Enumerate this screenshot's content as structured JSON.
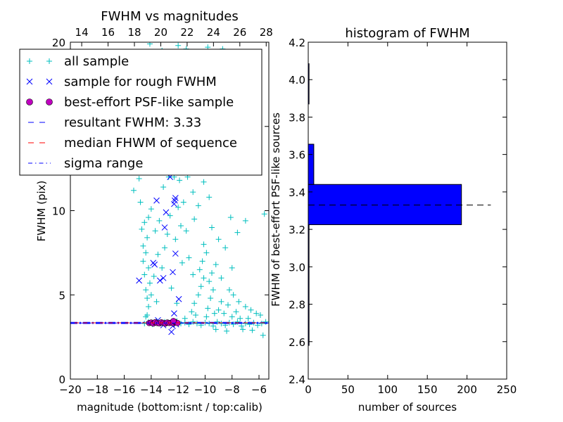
{
  "chart_data": [
    {
      "type": "scatter",
      "title": "FWHM vs magnitudes",
      "xlabel": "magnitude (bottom:isnt / top:calib)",
      "ylabel": "FWHM (pix)",
      "xlim": [
        -20,
        -5.27
      ],
      "ylim": [
        0,
        20
      ],
      "xticks": [
        "−20",
        "−18",
        "−16",
        "−14",
        "−12",
        "−10",
        "−8",
        "−6"
      ],
      "xtick_values": [
        -20,
        -18,
        -16,
        -14,
        -12,
        -10,
        -8,
        -6
      ],
      "yticks": [
        "0",
        "5",
        "10",
        "15",
        "20"
      ],
      "ytick_values": [
        0,
        5,
        10,
        15,
        20
      ],
      "top_axis": {
        "xlim": [
          13.14,
          28.2
        ],
        "ticks": [
          "14",
          "16",
          "18",
          "20",
          "22",
          "24",
          "26",
          "28"
        ],
        "tick_values": [
          14,
          16,
          18,
          20,
          22,
          24,
          26,
          28
        ]
      },
      "legend_placement": "upper-left",
      "legend": [
        {
          "label": "all sample",
          "marker": "+",
          "color": "#00bfbf"
        },
        {
          "label": "sample for rough FWHM",
          "marker": "x",
          "color": "#0000ff"
        },
        {
          "label": "best-effort PSF-like sample",
          "marker": "o",
          "color": "#bf00bf"
        },
        {
          "label": "resultant FWHM: 3.33",
          "marker": "--",
          "color": "#0000ff"
        },
        {
          "label": "median FHWM of sequence",
          "marker": "--",
          "color": "#ff0000"
        },
        {
          "label": "sigma range",
          "marker": "-.",
          "color": "#0000ff"
        }
      ],
      "lines": {
        "resultant": 3.33,
        "median": 3.34,
        "sigma_low": 3.3,
        "sigma_high": 3.37
      },
      "series": [
        {
          "name": "all sample",
          "points": [
            [
              -14.5,
              3.3
            ],
            [
              -14.2,
              3.4
            ],
            [
              -13.9,
              3.25
            ],
            [
              -13.6,
              3.45
            ],
            [
              -13.3,
              3.3
            ],
            [
              -13,
              3.4
            ],
            [
              -12.7,
              3.35
            ],
            [
              -12.4,
              3.3
            ],
            [
              -12.1,
              3.45
            ],
            [
              -11.8,
              3.3
            ],
            [
              -11.5,
              3.35
            ],
            [
              -11.2,
              3.25
            ],
            [
              -10.9,
              3.4
            ],
            [
              -10.6,
              3.3
            ],
            [
              -10.3,
              3.2
            ],
            [
              -10,
              3.35
            ],
            [
              -9.7,
              3.3
            ],
            [
              -9.4,
              3.15
            ],
            [
              -9.1,
              3.4
            ],
            [
              -8.8,
              3.3
            ],
            [
              -8.5,
              3.2
            ],
            [
              -8.2,
              3.35
            ],
            [
              -7.9,
              3.25
            ],
            [
              -7.6,
              3.4
            ],
            [
              -7.3,
              3.15
            ],
            [
              -7,
              3.3
            ],
            [
              -6.7,
              3.25
            ],
            [
              -6.4,
              3.35
            ],
            [
              -6.1,
              3.2
            ],
            [
              -5.8,
              3.3
            ],
            [
              -5.5,
              3.4
            ],
            [
              -6.5,
              2.9
            ],
            [
              -7.2,
              2.95
            ],
            [
              -8.4,
              2.85
            ],
            [
              -9.2,
              2.95
            ],
            [
              -5.7,
              2.6
            ],
            [
              -6.8,
              3.6
            ],
            [
              -5.9,
              3.8
            ],
            [
              -14.3,
              3.8
            ],
            [
              -14.2,
              4.3
            ],
            [
              -14.3,
              4.8
            ],
            [
              -14.4,
              5.3
            ],
            [
              -14.1,
              5.7
            ],
            [
              -14.5,
              6.2
            ],
            [
              -14.2,
              6.6
            ],
            [
              -14.6,
              7.0
            ],
            [
              -14.4,
              7.5
            ],
            [
              -14.6,
              7.9
            ],
            [
              -14.3,
              8.4
            ],
            [
              -14.7,
              8.9
            ],
            [
              -14.5,
              9.3
            ],
            [
              -14.2,
              9.6
            ],
            [
              -14.8,
              10.5
            ],
            [
              -14.0,
              10.1
            ],
            [
              -13.7,
              8.8
            ],
            [
              -13.5,
              7.4
            ],
            [
              -13.8,
              6.1
            ],
            [
              -13.2,
              6.6
            ],
            [
              -13.0,
              7.8
            ],
            [
              -12.8,
              8.6
            ],
            [
              -13.4,
              9.4
            ],
            [
              -12.6,
              9.7
            ],
            [
              -13.1,
              11.4
            ],
            [
              -12.7,
              12.0
            ],
            [
              -14.9,
              11.9
            ],
            [
              -15.3,
              11.2
            ],
            [
              -14.0,
              5.0
            ],
            [
              -13.6,
              4.6
            ],
            [
              -14.4,
              3.7
            ],
            [
              -11.5,
              3.6
            ],
            [
              -11.0,
              4.0
            ],
            [
              -10.8,
              4.5
            ],
            [
              -10.5,
              5.0
            ],
            [
              -10.3,
              5.5
            ],
            [
              -10.1,
              6.0
            ],
            [
              -10.4,
              6.5
            ],
            [
              -10.2,
              7.0
            ],
            [
              -9.9,
              7.5
            ],
            [
              -10.1,
              8.0
            ],
            [
              -9.8,
              4.2
            ],
            [
              -9.6,
              4.8
            ],
            [
              -9.4,
              5.3
            ],
            [
              -9.7,
              5.8
            ],
            [
              -9.5,
              6.3
            ],
            [
              -9.2,
              6.8
            ],
            [
              -9.0,
              4.1
            ],
            [
              -8.8,
              4.6
            ],
            [
              -8.6,
              3.9
            ],
            [
              -8.3,
              4.4
            ],
            [
              -8.0,
              3.7
            ],
            [
              -7.7,
              4.0
            ],
            [
              -7.4,
              3.6
            ],
            [
              -10.7,
              3.8
            ],
            [
              -9.9,
              3.7
            ],
            [
              -9.3,
              3.9
            ],
            [
              -10.9,
              6.2
            ],
            [
              -11.2,
              7.2
            ],
            [
              -11.4,
              8.8
            ],
            [
              -10.8,
              9.5
            ],
            [
              -10.5,
              10.3
            ],
            [
              -10.9,
              11.1
            ],
            [
              -11.6,
              10.5
            ],
            [
              -11.8,
              9.1
            ],
            [
              -11.3,
              12.0
            ],
            [
              -9.5,
              9.0
            ],
            [
              -9.0,
              8.3
            ],
            [
              -8.5,
              7.8
            ],
            [
              -8.8,
              6.0
            ],
            [
              -8.2,
              5.3
            ],
            [
              -7.9,
              5.0
            ],
            [
              -7.5,
              4.6
            ],
            [
              -7.0,
              4.3
            ],
            [
              -6.6,
              4.1
            ],
            [
              -6.2,
              3.9
            ],
            [
              -8.1,
              9.6
            ],
            [
              -7.0,
              9.4
            ],
            [
              -7.6,
              8.7
            ],
            [
              -5.6,
              9.8
            ],
            [
              -8.0,
              6.6
            ],
            [
              -9.7,
              10.8
            ],
            [
              -10.1,
              11.7
            ],
            [
              -11.9,
              11.8
            ],
            [
              -12.3,
              12.0
            ],
            [
              -12.0,
              10.2
            ],
            [
              -12.2,
              8.3
            ],
            [
              -11.7,
              6.9
            ],
            [
              -12.5,
              5.4
            ],
            [
              -12.1,
              4.5
            ],
            [
              -14.1,
              19.9
            ],
            [
              -12.0,
              19.8
            ],
            [
              -11.4,
              19.6
            ],
            [
              -9.8,
              19.7
            ],
            [
              -13.2,
              19.5
            ],
            [
              -8.7,
              19.6
            ]
          ]
        },
        {
          "name": "sample for rough FWHM",
          "points": [
            [
              -14.9,
              5.85
            ],
            [
              -13.85,
              6.9
            ],
            [
              -13.75,
              6.8
            ],
            [
              -13.35,
              5.85
            ],
            [
              -13.1,
              6.0
            ],
            [
              -13.0,
              9.0
            ],
            [
              -12.9,
              9.9
            ],
            [
              -13.6,
              10.6
            ],
            [
              -12.3,
              10.4
            ],
            [
              -12.25,
              10.6
            ],
            [
              -12.2,
              10.75
            ],
            [
              -12.4,
              6.35
            ],
            [
              -12.2,
              7.45
            ],
            [
              -11.95,
              4.75
            ],
            [
              -12.3,
              3.9
            ],
            [
              -12.5,
              2.8
            ],
            [
              -12.4,
              3.15
            ],
            [
              -12.15,
              3.25
            ],
            [
              -12.6,
              12.0
            ],
            [
              -13.5,
              3.5
            ],
            [
              -13.1,
              3.2
            ]
          ]
        },
        {
          "name": "best-effort PSF-like sample",
          "points": [
            [
              -14.15,
              3.33
            ],
            [
              -14.0,
              3.36
            ],
            [
              -13.85,
              3.3
            ],
            [
              -13.7,
              3.38
            ],
            [
              -13.55,
              3.33
            ],
            [
              -13.4,
              3.31
            ],
            [
              -13.25,
              3.37
            ],
            [
              -13.1,
              3.34
            ],
            [
              -12.95,
              3.3
            ],
            [
              -12.8,
              3.36
            ],
            [
              -12.65,
              3.33
            ],
            [
              -12.5,
              3.35
            ],
            [
              -12.35,
              3.32
            ],
            [
              -12.2,
              3.38
            ],
            [
              -12.05,
              3.33
            ],
            [
              -12.35,
              3.45
            ]
          ]
        }
      ]
    },
    {
      "type": "bar",
      "orientation": "horizontal",
      "title": "histogram of FWHM",
      "xlabel": "number of sources",
      "ylabel": "FWHM of best-effort PSF-like sources",
      "xlim": [
        0,
        250
      ],
      "ylim": [
        2.4,
        4.2
      ],
      "xticks": [
        "0",
        "50",
        "100",
        "150",
        "200",
        "250"
      ],
      "xtick_values": [
        0,
        50,
        100,
        150,
        200,
        250
      ],
      "yticks": [
        "2.4",
        "2.6",
        "2.8",
        "3.0",
        "3.2",
        "3.4",
        "3.6",
        "3.8",
        "4.0",
        "4.2"
      ],
      "ytick_values": [
        2.4,
        2.6,
        2.8,
        3.0,
        3.2,
        3.4,
        3.6,
        3.8,
        4.0,
        4.2
      ],
      "bin_edges": [
        2.58,
        2.795,
        3.01,
        3.225,
        3.44,
        3.655,
        3.87,
        4.085
      ],
      "values": [
        1,
        1,
        1,
        193,
        7,
        0,
        1
      ],
      "bar_color": "#0000ff",
      "reference_line": {
        "value": 3.33,
        "x_extent": [
          0,
          230
        ],
        "style": "--",
        "color": "#000000"
      }
    }
  ]
}
